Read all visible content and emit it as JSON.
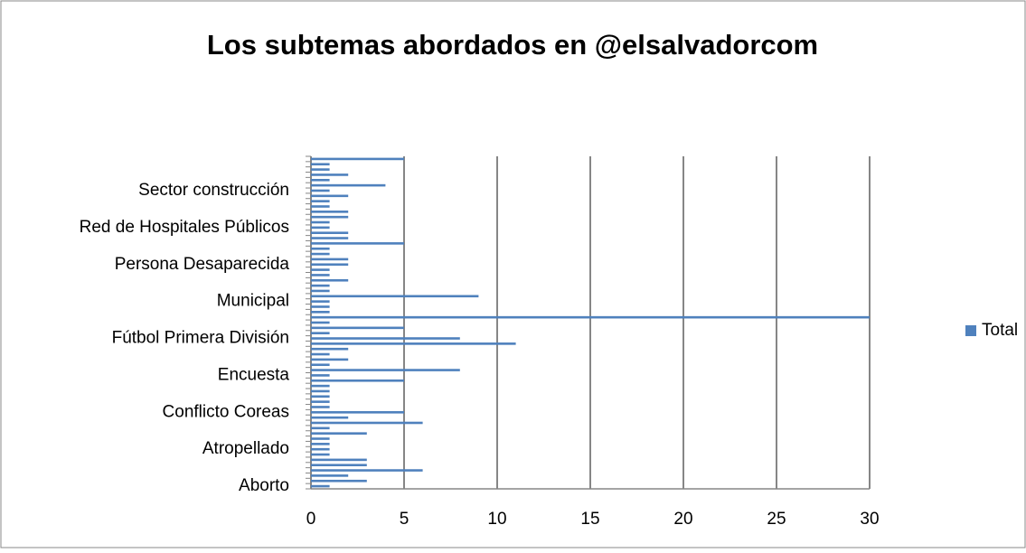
{
  "chart_data": {
    "type": "bar",
    "orientation": "horizontal",
    "title": "Los subtemas abordados en @elsalvadorcom",
    "categories": [
      "Aborto",
      null,
      null,
      null,
      null,
      null,
      null,
      "Atropellado",
      null,
      null,
      null,
      null,
      null,
      null,
      "Conflicto Coreas",
      null,
      null,
      null,
      null,
      null,
      null,
      "Encuesta",
      null,
      null,
      null,
      null,
      null,
      null,
      "Fútbol Primera División",
      null,
      null,
      null,
      null,
      null,
      null,
      "Municipal",
      null,
      null,
      null,
      null,
      null,
      null,
      "Persona Desaparecida",
      null,
      null,
      null,
      null,
      null,
      null,
      "Red de Hospitales Públicos",
      null,
      null,
      null,
      null,
      null,
      null,
      "Sector construcción",
      null,
      null,
      null,
      null,
      null,
      null
    ],
    "series": [
      {
        "name": "Total",
        "color": "#4f81bd",
        "values": [
          1,
          3,
          2,
          6,
          3,
          3,
          1,
          1,
          1,
          1,
          3,
          1,
          6,
          2,
          5,
          1,
          1,
          1,
          1,
          1,
          5,
          1,
          8,
          1,
          2,
          1,
          2,
          11,
          8,
          1,
          5,
          1,
          30,
          1,
          1,
          1,
          9,
          1,
          1,
          2,
          1,
          1,
          2,
          2,
          1,
          1,
          5,
          2,
          2,
          1,
          1,
          2,
          2,
          1,
          1,
          2,
          1,
          4,
          1,
          2,
          1,
          1,
          5
        ]
      }
    ],
    "xlim": [
      0,
      30
    ],
    "xticks": [
      0,
      5,
      10,
      15,
      20,
      25,
      30
    ],
    "grid": true,
    "legend": "right"
  }
}
